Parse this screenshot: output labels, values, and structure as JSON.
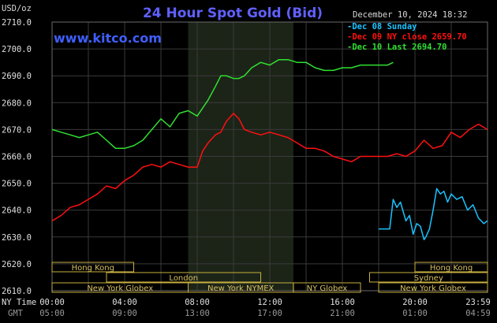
{
  "header": {
    "title": "24 Hour Spot Gold (Bid)",
    "site": "www.kitco.com",
    "date": "December 10, 2024 18:32",
    "unit": "USD/oz"
  },
  "colors": {
    "background": "#000000",
    "grid": "#3a3a3a",
    "shade": "#1c2418",
    "title": "#6060ff",
    "session_border": "#c8b040",
    "session_text": "#d8c060"
  },
  "chart_data": {
    "type": "line",
    "ylim": [
      2610,
      2710
    ],
    "yticks": [
      "2610.0",
      "2620.0",
      "2630.0",
      "2640.0",
      "2650.0",
      "2660.0",
      "2670.0",
      "2680.0",
      "2690.0",
      "2700.0",
      "2710.0"
    ],
    "xlim": [
      0,
      24
    ],
    "xticks_ny": [
      "00:00",
      "04:00",
      "08:00",
      "12:00",
      "16:00",
      "20:00",
      "23:59"
    ],
    "xticks_gmt": [
      "05:00",
      "09:00",
      "13:00",
      "17:00",
      "21:00",
      "01:00",
      "04:59"
    ],
    "x_row_labels": [
      "NY Time",
      "GMT"
    ],
    "shaded_hours": [
      7.5,
      13.3
    ],
    "series": [
      {
        "name": "Dec 08 Sunday",
        "color": "#19c3ff",
        "x": [
          18.0,
          18.6,
          18.61,
          18.8,
          19.0,
          19.2,
          19.5,
          19.7,
          19.9,
          20.1,
          20.3,
          20.5,
          20.6,
          20.8,
          21.0,
          21.2,
          21.4,
          21.6,
          21.8,
          22.0,
          22.3,
          22.6,
          22.9,
          23.2,
          23.5,
          23.8,
          23.99
        ],
        "values": [
          2633,
          2633,
          2633,
          2644,
          2641,
          2643,
          2636,
          2638,
          2631,
          2635,
          2634,
          2629,
          2630,
          2633,
          2640,
          2648,
          2646,
          2647,
          2643,
          2646,
          2644,
          2645,
          2640,
          2642,
          2637,
          2635,
          2636
        ]
      },
      {
        "name": "Dec 09 NY close 2659.70",
        "color": "#ff1010",
        "x": [
          0,
          0.5,
          1,
          1.5,
          2,
          2.5,
          3,
          3.5,
          4,
          4.5,
          5,
          5.5,
          6,
          6.5,
          7,
          7.5,
          8,
          8.3,
          8.6,
          9,
          9.3,
          9.6,
          10,
          10.3,
          10.6,
          11,
          11.5,
          12,
          12.5,
          13,
          13.5,
          14,
          14.5,
          15,
          15.5,
          16,
          16.5,
          17,
          17.5,
          18,
          18.5,
          19,
          19.5,
          20,
          20.5,
          21,
          21.5,
          22,
          22.5,
          23,
          23.5,
          23.99
        ],
        "values": [
          2636,
          2638,
          2641,
          2642,
          2644,
          2646,
          2649,
          2648,
          2651,
          2653,
          2656,
          2657,
          2656,
          2658,
          2657,
          2656,
          2656,
          2662,
          2665,
          2668,
          2669,
          2673,
          2676,
          2674,
          2670,
          2669,
          2668,
          2669,
          2668,
          2667,
          2665,
          2663,
          2663,
          2662,
          2660,
          2659,
          2658,
          2660,
          2660,
          2660,
          2660,
          2661,
          2660,
          2662,
          2666,
          2663,
          2664,
          2669,
          2667,
          2670,
          2672,
          2670
        ]
      },
      {
        "name": "Dec 10 Last 2694.70",
        "color": "#30e030",
        "x": [
          0,
          0.5,
          1,
          1.5,
          2,
          2.5,
          3,
          3.5,
          4,
          4.5,
          5,
          5.5,
          6,
          6.5,
          7,
          7.5,
          8,
          8.3,
          8.6,
          9,
          9.3,
          9.6,
          10,
          10.3,
          10.6,
          11,
          11.5,
          12,
          12.5,
          13,
          13.5,
          14,
          14.5,
          15,
          15.5,
          16,
          16.5,
          17,
          17.5,
          18,
          18.5,
          18.8
        ],
        "values": [
          2670,
          2669,
          2668,
          2667,
          2668,
          2669,
          2666,
          2663,
          2663,
          2664,
          2666,
          2670,
          2674,
          2671,
          2676,
          2677,
          2675,
          2678,
          2681,
          2686,
          2690,
          2690,
          2689,
          2689,
          2690,
          2693,
          2695,
          2694,
          2696,
          2696,
          2695,
          2695,
          2693,
          2692,
          2692,
          2693,
          2693,
          2694,
          2694,
          2694,
          2694,
          2695
        ]
      }
    ],
    "sessions": [
      {
        "label": "Hong Kong",
        "row": 0,
        "start": 0,
        "end": 4.5
      },
      {
        "label": "Hong Kong",
        "row": 0,
        "start": 20.0,
        "end": 24.0
      },
      {
        "label": "London",
        "row": 1,
        "start": 3.0,
        "end": 11.5
      },
      {
        "label": "Sydney",
        "row": 1,
        "start": 17.5,
        "end": 24.0
      },
      {
        "label": "New York Globex",
        "row": 2,
        "start": 0,
        "end": 7.5
      },
      {
        "label": "New York NYMEX",
        "row": 2,
        "start": 7.5,
        "end": 13.3
      },
      {
        "label": "NY Globex",
        "row": 2,
        "start": 13.3,
        "end": 17.0
      },
      {
        "label": "New York Globex",
        "row": 2,
        "start": 18.0,
        "end": 24.0
      }
    ]
  }
}
